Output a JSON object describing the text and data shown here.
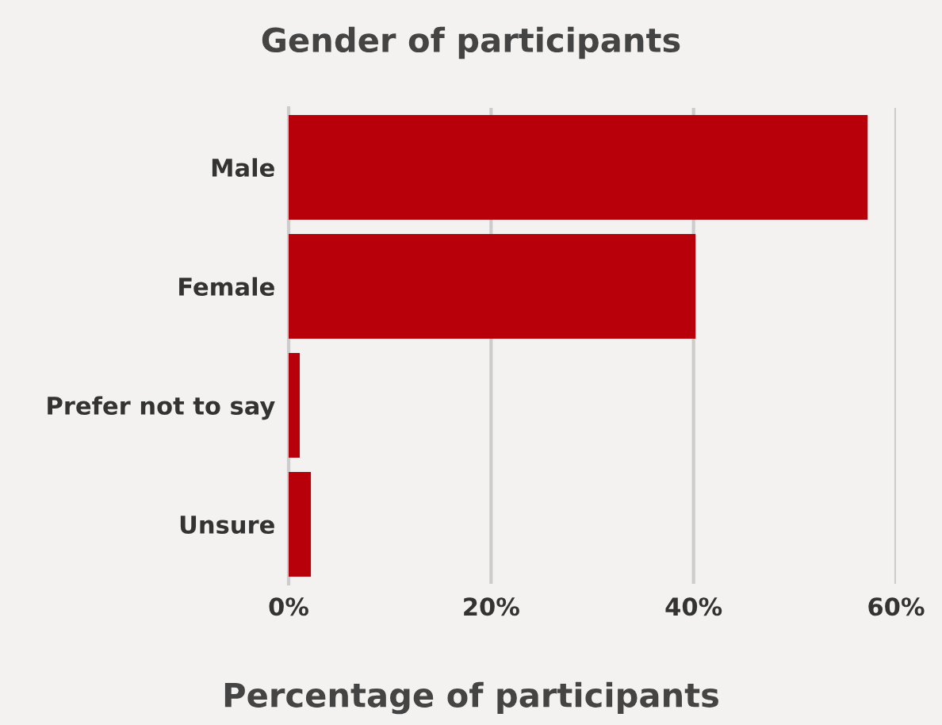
{
  "chart_data": {
    "type": "bar",
    "orientation": "horizontal",
    "title": "Gender of participants",
    "xlabel": "Percentage of participants",
    "categories": [
      "Male",
      "Female",
      "Prefer not to say",
      "Unsure"
    ],
    "series": [
      {
        "color": "#b8000b",
        "values": [
          57.2,
          40.2,
          1.1,
          2.2
        ]
      }
    ],
    "xlim": [
      0,
      60
    ],
    "xticks": [
      {
        "value": 0,
        "label": "0%"
      },
      {
        "value": 20,
        "label": "20%"
      },
      {
        "value": 40,
        "label": "40%"
      },
      {
        "value": 60,
        "label": "60%"
      }
    ],
    "grid": "x",
    "legend": false
  }
}
